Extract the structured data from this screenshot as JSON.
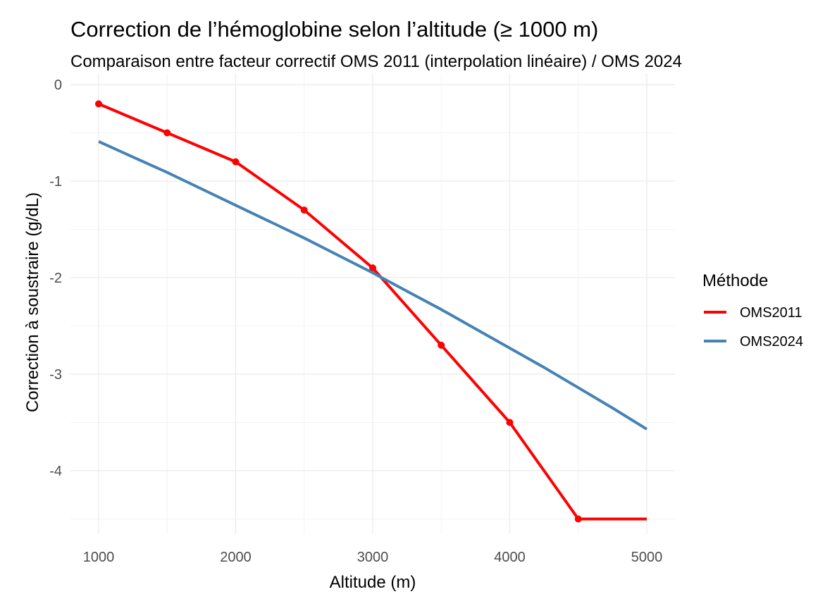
{
  "chart_data": {
    "type": "line",
    "title": "Correction de l’hémoglobine selon l’altitude (≥ 1000 m)",
    "subtitle": "Comparaison entre facteur correctif OMS 2011 (interpolation linéaire) / OMS 2024",
    "xlabel": "Altitude (m)",
    "ylabel": "Correction à soustraire (g/dL)",
    "xlim": [
      1000,
      5000
    ],
    "ylim": [
      -4.5,
      0
    ],
    "x_ticks": [
      "1000",
      "2000",
      "3000",
      "4000",
      "5000"
    ],
    "y_ticks": [
      "0",
      "-1",
      "-2",
      "-3",
      "-4"
    ],
    "grid": true,
    "legend": {
      "title": "Méthode",
      "position": "right"
    },
    "series": [
      {
        "name": "OMS2011",
        "color": "#ff0000",
        "markers": true,
        "x": [
          1000,
          1500,
          2000,
          2500,
          3000,
          3500,
          4000,
          4500,
          5000
        ],
        "y": [
          -0.2,
          -0.5,
          -0.8,
          -1.3,
          -1.9,
          -2.7,
          -3.5,
          -4.5,
          -4.5
        ],
        "marker_x": [
          1000,
          1500,
          2000,
          2500,
          3000,
          3500,
          4000,
          4500
        ]
      },
      {
        "name": "OMS2024",
        "color": "#4682b4",
        "markers": false,
        "x": [
          1000,
          1250,
          1500,
          1750,
          2000,
          2250,
          2500,
          2750,
          3000,
          3250,
          3500,
          3750,
          4000,
          4250,
          4500,
          4750,
          5000
        ],
        "y": [
          -0.59,
          -0.75,
          -0.91,
          -1.08,
          -1.25,
          -1.42,
          -1.59,
          -1.77,
          -1.95,
          -2.14,
          -2.33,
          -2.53,
          -2.73,
          -2.93,
          -3.14,
          -3.35,
          -3.57
        ]
      }
    ]
  }
}
